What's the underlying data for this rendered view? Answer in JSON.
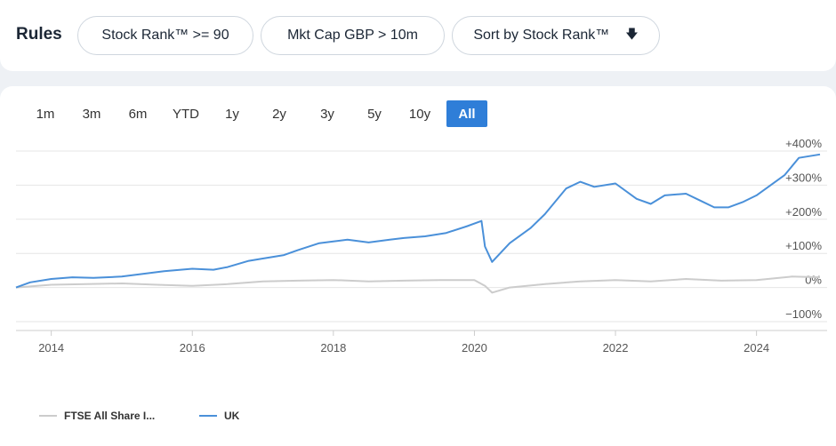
{
  "rules": {
    "title": "Rules",
    "filters": [
      {
        "label": "Stock Rank™ >= 90"
      },
      {
        "label": "Mkt Cap GBP > 10m"
      },
      {
        "label": "Sort by Stock Rank™",
        "arrow": "🡇"
      }
    ]
  },
  "ranges": [
    "1m",
    "3m",
    "6m",
    "YTD",
    "1y",
    "2y",
    "3y",
    "5y",
    "10y",
    "All"
  ],
  "active_range": "All",
  "colors": {
    "uk": "#4a90d9",
    "ftse": "#cccccc",
    "active": "#2f7ed8",
    "grid": "#e6e6e6"
  },
  "legend": [
    {
      "label": "FTSE All Share I...",
      "color": "#cccccc"
    },
    {
      "label": "UK",
      "color": "#4a90d9"
    }
  ],
  "chart_data": {
    "type": "line",
    "title": "",
    "xlabel": "",
    "ylabel": "",
    "xlim": [
      2013.5,
      2024.9
    ],
    "ylim": [
      -100,
      400
    ],
    "y_ticks": [
      "+400%",
      "+300%",
      "+200%",
      "+100%",
      "0%",
      "−100%"
    ],
    "y_tick_values": [
      400,
      300,
      200,
      100,
      0,
      -100
    ],
    "x_ticks": [
      "2014",
      "2016",
      "2018",
      "2020",
      "2022",
      "2024"
    ],
    "x_tick_values": [
      2014,
      2016,
      2018,
      2020,
      2022,
      2024
    ],
    "grid": true,
    "legend_position": "bottom-left",
    "series": [
      {
        "name": "UK",
        "color": "#4a90d9",
        "x": [
          2013.5,
          2013.7,
          2014.0,
          2014.3,
          2014.6,
          2015.0,
          2015.3,
          2015.6,
          2016.0,
          2016.3,
          2016.5,
          2016.8,
          2017.0,
          2017.3,
          2017.5,
          2017.8,
          2018.0,
          2018.2,
          2018.5,
          2018.8,
          2019.0,
          2019.3,
          2019.6,
          2019.9,
          2020.1,
          2020.15,
          2020.25,
          2020.5,
          2020.8,
          2021.0,
          2021.3,
          2021.5,
          2021.7,
          2022.0,
          2022.3,
          2022.5,
          2022.7,
          2023.0,
          2023.2,
          2023.4,
          2023.6,
          2023.8,
          2024.0,
          2024.2,
          2024.4,
          2024.6,
          2024.9
        ],
        "values": [
          0,
          15,
          25,
          30,
          28,
          32,
          40,
          48,
          55,
          52,
          60,
          78,
          85,
          95,
          110,
          130,
          135,
          140,
          132,
          140,
          145,
          150,
          160,
          180,
          195,
          120,
          75,
          130,
          175,
          215,
          290,
          310,
          295,
          305,
          260,
          245,
          270,
          275,
          255,
          235,
          235,
          250,
          270,
          300,
          330,
          380,
          390
        ]
      },
      {
        "name": "FTSE All Share I...",
        "color": "#cccccc",
        "x": [
          2013.5,
          2014.0,
          2014.5,
          2015.0,
          2015.5,
          2016.0,
          2016.5,
          2017.0,
          2017.5,
          2018.0,
          2018.5,
          2019.0,
          2019.5,
          2020.0,
          2020.15,
          2020.25,
          2020.5,
          2021.0,
          2021.5,
          2022.0,
          2022.5,
          2023.0,
          2023.5,
          2024.0,
          2024.5,
          2024.9
        ],
        "values": [
          0,
          8,
          10,
          12,
          8,
          5,
          10,
          18,
          20,
          22,
          18,
          20,
          22,
          22,
          5,
          -15,
          0,
          10,
          18,
          22,
          18,
          25,
          20,
          22,
          32,
          30
        ]
      }
    ]
  }
}
